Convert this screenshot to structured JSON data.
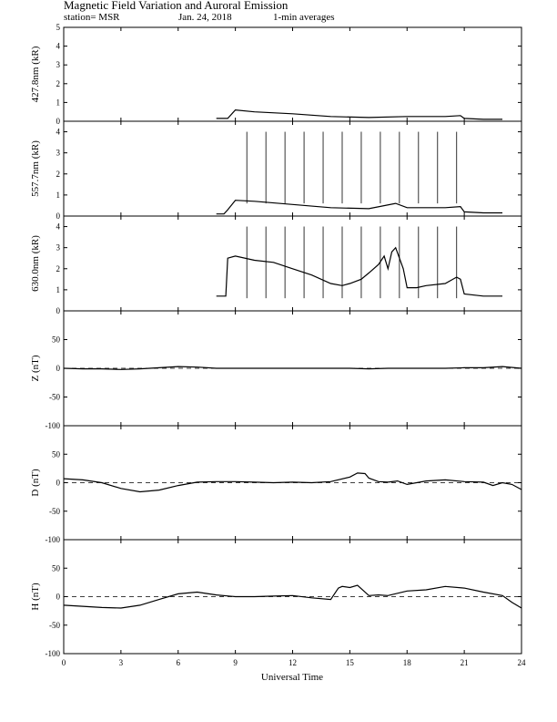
{
  "title": "Magnetic Field Variation and Auroral Emission",
  "station": "station= MSR",
  "date": "Jan. 24, 2018",
  "averaging": "1-min averages",
  "chart_data": [
    {
      "type": "line",
      "id": "p4278",
      "ylabel": "427.8nm (kR)",
      "xlim": [
        0,
        24
      ],
      "ylim": [
        0,
        5
      ],
      "yticks": [
        0,
        1,
        2,
        3,
        4,
        5
      ],
      "series": [
        {
          "x": [
            8.0,
            8.4,
            8.6,
            9.0,
            10.0,
            12.0,
            14.0,
            16.0,
            18.0,
            20.0,
            20.8,
            21.0,
            22.0,
            23.0
          ],
          "y": [
            0.15,
            0.15,
            0.15,
            0.6,
            0.5,
            0.4,
            0.25,
            0.2,
            0.25,
            0.25,
            0.3,
            0.15,
            0.1,
            0.1
          ]
        }
      ]
    },
    {
      "type": "line",
      "id": "p5577",
      "ylabel": "557.7nm (kR)",
      "xlim": [
        0,
        24
      ],
      "ylim": [
        0,
        4.5
      ],
      "yticks": [
        0,
        1,
        2,
        3,
        4
      ],
      "series": [
        {
          "x": [
            8.0,
            8.4,
            8.6,
            9.0,
            10.0,
            12.0,
            14.0,
            16.0,
            17.4,
            18.0,
            20.0,
            20.8,
            21.0,
            22.0,
            23.0
          ],
          "y": [
            0.1,
            0.1,
            0.3,
            0.75,
            0.7,
            0.55,
            0.4,
            0.35,
            0.6,
            0.4,
            0.4,
            0.45,
            0.2,
            0.15,
            0.15
          ]
        }
      ],
      "calibration_spikes_x": [
        9.6,
        10.6,
        11.6,
        12.6,
        13.6,
        14.6,
        15.6,
        16.6,
        17.6,
        18.6,
        19.6,
        20.6
      ],
      "spike_top": 4.0
    },
    {
      "type": "line",
      "id": "p6300",
      "ylabel": "630.0nm (kR)",
      "xlim": [
        0,
        24
      ],
      "ylim": [
        0,
        4.5
      ],
      "yticks": [
        0,
        1,
        2,
        3,
        4
      ],
      "series": [
        {
          "x": [
            8.0,
            8.5,
            8.6,
            9.0,
            10.0,
            11.0,
            12.0,
            13.0,
            14.0,
            14.6,
            15.0,
            15.6,
            16.0,
            16.5,
            16.8,
            17.0,
            17.2,
            17.4,
            17.6,
            17.8,
            18.0,
            18.5,
            19.0,
            20.0,
            20.6,
            20.8,
            21.0,
            22.0,
            23.0
          ],
          "y": [
            0.7,
            0.7,
            2.5,
            2.6,
            2.4,
            2.3,
            2.0,
            1.7,
            1.3,
            1.2,
            1.3,
            1.5,
            1.8,
            2.2,
            2.6,
            2.0,
            2.8,
            3.0,
            2.5,
            2.0,
            1.1,
            1.1,
            1.2,
            1.3,
            1.6,
            1.5,
            0.8,
            0.7,
            0.7
          ]
        }
      ],
      "calibration_spikes_x": [
        9.6,
        10.6,
        11.6,
        12.6,
        13.6,
        14.6,
        15.6,
        16.6,
        17.6,
        18.6,
        19.6,
        20.6
      ],
      "spike_top": 4.0
    },
    {
      "type": "line",
      "id": "pZ",
      "ylabel": "Z (nT)",
      "xlim": [
        0,
        24
      ],
      "ylim": [
        -100,
        100
      ],
      "yticks": [
        -100,
        -50,
        0,
        50
      ],
      "zero_line": true,
      "series": [
        {
          "x": [
            0,
            1,
            2,
            3,
            4,
            5,
            6,
            7,
            8,
            9,
            10,
            11,
            12,
            13,
            14,
            15,
            16,
            17,
            18,
            19,
            20,
            21,
            22,
            23,
            24
          ],
          "y": [
            0,
            -1,
            -1,
            -2,
            -1,
            1,
            3,
            2,
            0,
            0,
            0,
            0,
            0,
            0,
            0,
            0,
            -1,
            0,
            0,
            0,
            0,
            1,
            1,
            3,
            0
          ]
        }
      ]
    },
    {
      "type": "line",
      "id": "pD",
      "ylabel": "D (nT)",
      "xlim": [
        0,
        24
      ],
      "ylim": [
        -100,
        100
      ],
      "yticks": [
        -100,
        -50,
        0,
        50
      ],
      "zero_line": true,
      "series": [
        {
          "x": [
            0,
            1,
            2,
            3,
            4,
            5,
            6,
            7,
            8,
            9,
            10,
            11,
            12,
            13,
            14,
            15,
            15.4,
            15.8,
            16,
            16.5,
            17,
            17.5,
            18,
            19,
            20,
            21,
            22,
            22.5,
            23,
            23.5,
            24
          ],
          "y": [
            7,
            5,
            0,
            -10,
            -16,
            -13,
            -5,
            1,
            2,
            2,
            1,
            0,
            1,
            0,
            2,
            10,
            17,
            16,
            8,
            2,
            1,
            3,
            -3,
            3,
            5,
            2,
            1,
            -5,
            0,
            -3,
            -12
          ]
        }
      ]
    },
    {
      "type": "line",
      "id": "pH",
      "ylabel": "H (nT)",
      "xlim": [
        0,
        24
      ],
      "ylim": [
        -100,
        100
      ],
      "yticks": [
        -100,
        -50,
        0,
        50
      ],
      "zero_line": true,
      "series": [
        {
          "x": [
            0,
            1,
            2,
            3,
            4,
            5,
            6,
            7,
            8,
            9,
            10,
            11,
            12,
            13,
            14,
            14.4,
            14.6,
            15,
            15.4,
            16,
            16.5,
            17,
            18,
            19,
            20,
            21,
            22,
            23,
            23.5,
            24
          ],
          "y": [
            -15,
            -17,
            -19,
            -20,
            -15,
            -5,
            5,
            8,
            3,
            0,
            0,
            1,
            2,
            -2,
            -5,
            15,
            18,
            16,
            20,
            2,
            3,
            2,
            10,
            12,
            18,
            15,
            8,
            2,
            -10,
            -20
          ]
        }
      ]
    }
  ],
  "x_axis": {
    "label": "Universal Time",
    "ticks": [
      0,
      3,
      6,
      9,
      12,
      15,
      18,
      21,
      24
    ]
  }
}
